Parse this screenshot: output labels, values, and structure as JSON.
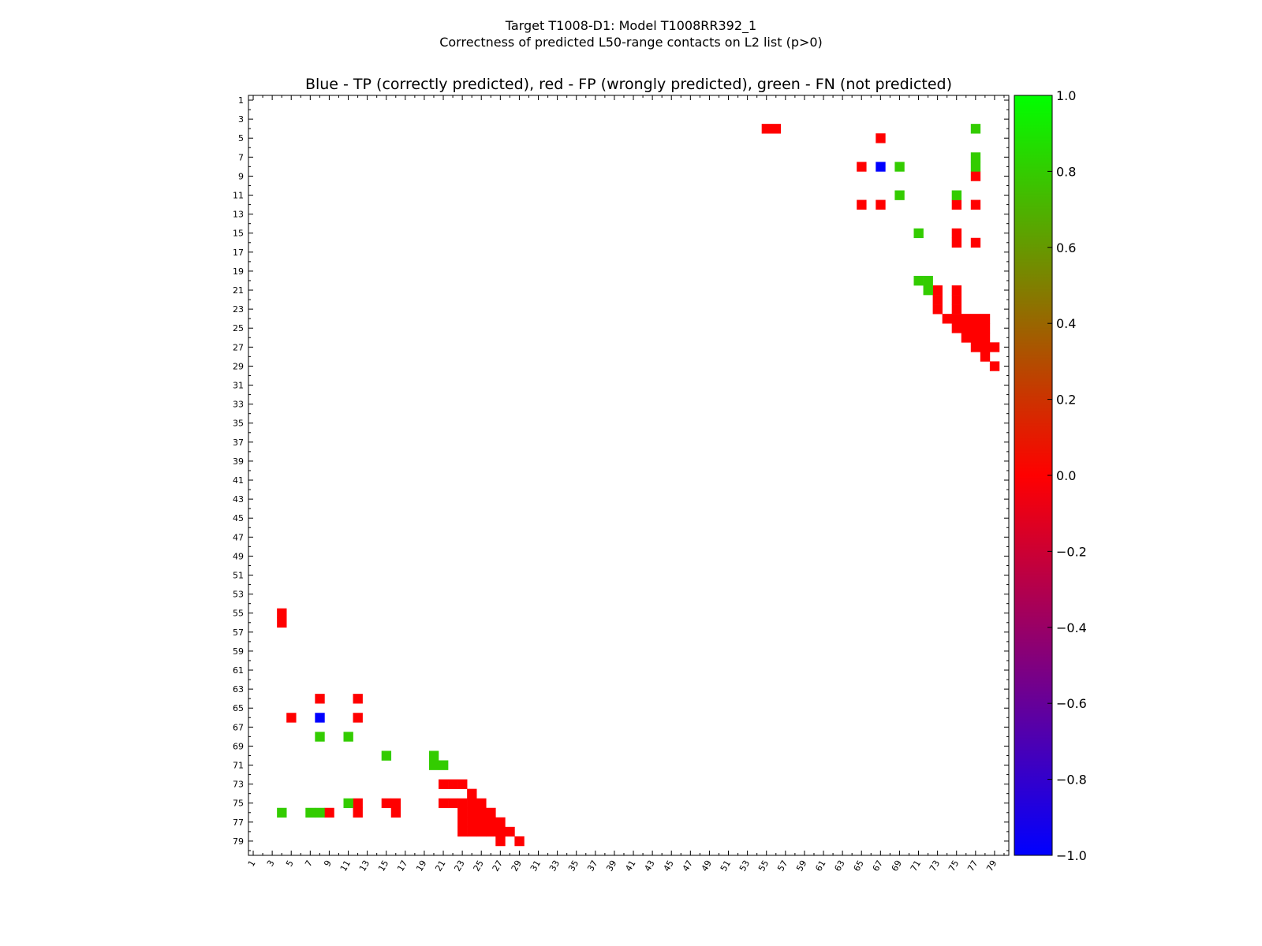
{
  "figure": {
    "title_line1": "Target T1008-D1: Model T1008RR392_1",
    "title_line2": "Correctness of predicted L50-range contacts on L2 list (p>0)"
  },
  "chart_data": {
    "type": "heatmap",
    "title": "Blue - TP (correctly predicted), red - FP (wrongly predicted), green - FN (not predicted)",
    "xlabel": "",
    "ylabel": "",
    "x_range": [
      1,
      80
    ],
    "y_range": [
      1,
      80
    ],
    "y_inverted": true,
    "x_ticks": [
      1,
      3,
      5,
      7,
      9,
      11,
      13,
      15,
      17,
      19,
      21,
      23,
      25,
      27,
      29,
      31,
      33,
      35,
      37,
      39,
      41,
      43,
      45,
      47,
      49,
      51,
      53,
      55,
      57,
      59,
      61,
      63,
      65,
      67,
      69,
      71,
      73,
      75,
      77,
      79
    ],
    "y_ticks": [
      1,
      3,
      5,
      7,
      9,
      11,
      13,
      15,
      17,
      19,
      21,
      23,
      25,
      27,
      29,
      31,
      33,
      35,
      37,
      39,
      41,
      43,
      45,
      47,
      49,
      51,
      53,
      55,
      57,
      59,
      61,
      63,
      65,
      67,
      69,
      71,
      73,
      75,
      77,
      79
    ],
    "colorbar": {
      "range": [
        -1.0,
        1.0
      ],
      "ticks": [
        "1.0",
        "0.8",
        "0.6",
        "0.4",
        "0.2",
        "0.0",
        "−0.2",
        "−0.4",
        "−0.6",
        "−0.8",
        "−1.0"
      ],
      "stops": [
        {
          "value": 1.0,
          "color": "#00ff00"
        },
        {
          "value": 0.0,
          "color": "#ff0000"
        },
        {
          "value": -1.0,
          "color": "#0000ff"
        }
      ]
    },
    "legend": {
      "TP": {
        "value": -1.0,
        "color": "#0000ff"
      },
      "FP": {
        "value": 0.0,
        "color": "#ff0000"
      },
      "FN": {
        "value": 0.8,
        "color": "#33cc00"
      }
    },
    "upper_triangle": {
      "FP": [
        [
          4,
          55
        ],
        [
          4,
          56
        ],
        [
          5,
          67
        ],
        [
          8,
          65
        ],
        [
          12,
          65
        ],
        [
          12,
          67
        ],
        [
          9,
          77
        ],
        [
          12,
          75
        ],
        [
          12,
          77
        ],
        [
          15,
          75
        ],
        [
          16,
          75
        ],
        [
          16,
          77
        ],
        [
          21,
          73
        ],
        [
          22,
          73
        ],
        [
          23,
          73
        ],
        [
          21,
          75
        ],
        [
          22,
          75
        ],
        [
          23,
          75
        ],
        [
          24,
          76
        ],
        [
          24,
          77
        ],
        [
          24,
          78
        ],
        [
          24,
          74
        ],
        [
          24,
          75
        ],
        [
          25,
          75
        ],
        [
          25,
          76
        ],
        [
          25,
          77
        ],
        [
          25,
          78
        ],
        [
          26,
          76
        ],
        [
          26,
          77
        ],
        [
          26,
          78
        ],
        [
          27,
          77
        ],
        [
          27,
          78
        ],
        [
          27,
          79
        ],
        [
          28,
          78
        ],
        [
          29,
          79
        ]
      ],
      "TP": [
        [
          8,
          67
        ]
      ],
      "FN": [
        [
          4,
          77
        ],
        [
          7,
          77
        ],
        [
          8,
          77
        ],
        [
          8,
          69
        ],
        [
          11,
          69
        ],
        [
          11,
          75
        ],
        [
          15,
          71
        ],
        [
          20,
          71
        ],
        [
          20,
          72
        ],
        [
          21,
          72
        ]
      ]
    },
    "lower_triangle": {
      "FP": [
        [
          55,
          4
        ],
        [
          56,
          4
        ],
        [
          64,
          8
        ],
        [
          64,
          12
        ],
        [
          66,
          5
        ],
        [
          66,
          12
        ],
        [
          75,
          12
        ],
        [
          75,
          15
        ],
        [
          75,
          16
        ],
        [
          76,
          9
        ],
        [
          76,
          12
        ],
        [
          76,
          16
        ],
        [
          73,
          21
        ],
        [
          73,
          22
        ],
        [
          73,
          23
        ],
        [
          75,
          21
        ],
        [
          75,
          22
        ],
        [
          75,
          23
        ],
        [
          74,
          24
        ],
        [
          75,
          24
        ],
        [
          75,
          25
        ],
        [
          76,
          23
        ],
        [
          76,
          24
        ],
        [
          76,
          25
        ],
        [
          76,
          26
        ],
        [
          77,
          23
        ],
        [
          77,
          24
        ],
        [
          77,
          25
        ],
        [
          77,
          26
        ],
        [
          77,
          27
        ],
        [
          78,
          23
        ],
        [
          78,
          24
        ],
        [
          78,
          25
        ],
        [
          78,
          26
        ],
        [
          78,
          27
        ],
        [
          78,
          28
        ],
        [
          79,
          27
        ],
        [
          79,
          29
        ]
      ],
      "TP": [
        [
          66,
          8
        ]
      ],
      "FN": [
        [
          68,
          8
        ],
        [
          68,
          11
        ],
        [
          70,
          15
        ],
        [
          70,
          20
        ],
        [
          71,
          20
        ],
        [
          71,
          21
        ],
        [
          75,
          11
        ],
        [
          76,
          4
        ],
        [
          76,
          7
        ],
        [
          76,
          8
        ]
      ]
    }
  }
}
